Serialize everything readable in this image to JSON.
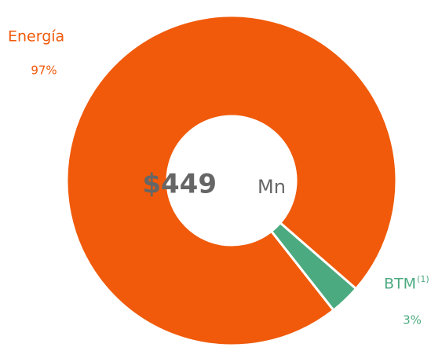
{
  "chart_data": {
    "type": "pie",
    "categories": [
      "Energía",
      "BTM"
    ],
    "category_notes": [
      null,
      "(1)"
    ],
    "values": [
      97,
      3
    ],
    "value_labels": [
      "97%",
      "3%"
    ],
    "colors": [
      "#f05a0a",
      "#4caa80"
    ],
    "center_value": "$449",
    "center_unit": "Mn"
  }
}
